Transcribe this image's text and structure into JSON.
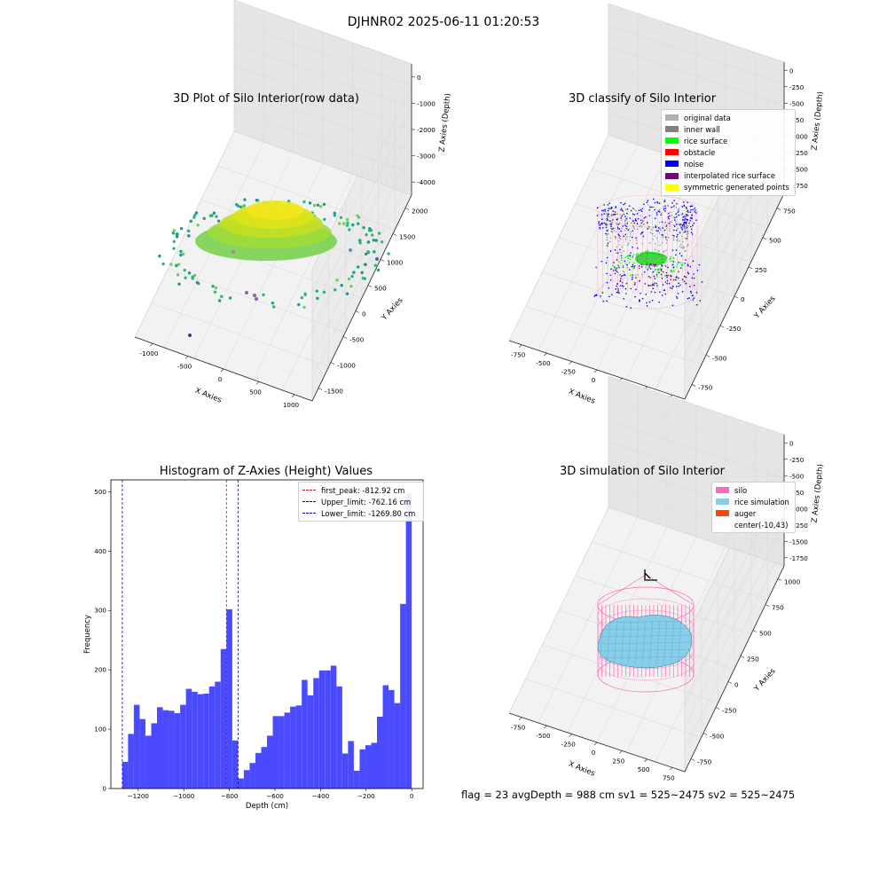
{
  "figure": {
    "title": "DJHNR02 2025-06-11 01:20:53",
    "footer": "flag = 23  avgDepth = 988 cm  sv1 = 525~2475  sv2 = 525~2475"
  },
  "panels": {
    "raw": {
      "title": "3D Plot of Silo Interior(row data)",
      "xlabel": "X Axies",
      "ylabel": "Y Axies",
      "zlabel": "Z Axies (Depth)",
      "xticks": [
        "-1000",
        "-500",
        "0",
        "500",
        "1000"
      ],
      "yticks": [
        "-1500",
        "-1000",
        "-500",
        "0",
        "500",
        "1000",
        "1500",
        "2000"
      ],
      "zticks": [
        "-4000",
        "-3000",
        "-2000",
        "-1000",
        "0"
      ]
    },
    "classify": {
      "title": "3D classify of Silo Interior",
      "xlabel": "X Axies",
      "ylabel": "Y Axies",
      "zlabel": "Z Axies (Depth)",
      "xticks": [
        "-750",
        "-500",
        "-250",
        "0",
        "250",
        "500",
        "750"
      ],
      "yticks": [
        "-750",
        "-500",
        "-250",
        "0",
        "250",
        "500",
        "750"
      ],
      "zticks": [
        "-1750",
        "-1500",
        "-1250",
        "-1000",
        "-750",
        "-500",
        "-250",
        "0"
      ],
      "legend": [
        {
          "label": "original data",
          "color": "#b0b0b0"
        },
        {
          "label": "inner wall",
          "color": "#808080"
        },
        {
          "label": "rice surface",
          "color": "#00ff00"
        },
        {
          "label": "obstacle",
          "color": "#ff0000"
        },
        {
          "label": "noise",
          "color": "#0000ff"
        },
        {
          "label": "interpolated rice surface",
          "color": "#800080"
        },
        {
          "label": "symmetric generated points",
          "color": "#ffff00"
        }
      ]
    },
    "simulation": {
      "title": "3D simulation of Silo Interior",
      "xlabel": "X Axies",
      "ylabel": "Y Axies",
      "zlabel": "Z Axies (Depth)",
      "xticks": [
        "-750",
        "-500",
        "-250",
        "0",
        "250",
        "500",
        "750"
      ],
      "yticks": [
        "-750",
        "-500",
        "-250",
        "0",
        "250",
        "500",
        "750",
        "1000"
      ],
      "zticks": [
        "-1750",
        "-1500",
        "-1250",
        "-1000",
        "-750",
        "-500",
        "-250",
        "0"
      ],
      "legend": [
        {
          "label": "silo",
          "color": "#ff69b4"
        },
        {
          "label": "rice simulation",
          "color": "#87ceeb"
        },
        {
          "label": "auger",
          "color": "#ff4500"
        },
        {
          "label": "center(-10,43)",
          "color": "none"
        }
      ]
    }
  },
  "chart_data": {
    "type": "bar",
    "title": "Histogram of Z-Axies (Height) Values",
    "xlabel": "Depth (cm)",
    "ylabel": "Frequency",
    "xlim": [
      -1320,
      50
    ],
    "ylim": [
      0,
      520
    ],
    "xticks": [
      -1200,
      -1000,
      -800,
      -600,
      -400,
      -200,
      0
    ],
    "xtick_labels": [
      "−1200",
      "−1000",
      "−800",
      "−600",
      "−400",
      "−200",
      "0"
    ],
    "yticks": [
      0,
      100,
      200,
      300,
      400,
      500
    ],
    "bin_start": -1270,
    "bin_width": 25.4,
    "bar_color": "#4a4aff",
    "values": [
      45,
      92,
      141,
      117,
      89,
      110,
      137,
      132,
      131,
      127,
      141,
      168,
      163,
      159,
      160,
      172,
      180,
      235,
      302,
      81,
      17,
      31,
      43,
      60,
      70,
      89,
      122,
      122,
      128,
      138,
      140,
      183,
      157,
      186,
      199,
      199,
      207,
      172,
      59,
      80,
      30,
      66,
      73,
      77,
      121,
      174,
      166,
      144,
      311,
      497
    ],
    "lines": [
      {
        "x": -812.92,
        "color": "#ff0000",
        "label": "first_peak: -812.92 cm"
      },
      {
        "x": -762.16,
        "color": "#00008b",
        "label": "Upper_limit: -762.16 cm"
      },
      {
        "x": -1269.8,
        "color": "#0000ff",
        "label": "Lower_limit: -1269.80 cm"
      }
    ]
  }
}
